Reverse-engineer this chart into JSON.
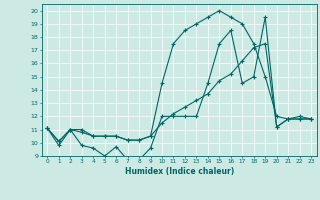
{
  "xlabel": "Humidex (Indice chaleur)",
  "xlim": [
    -0.5,
    23.5
  ],
  "ylim": [
    9,
    20.5
  ],
  "yticks": [
    9,
    10,
    11,
    12,
    13,
    14,
    15,
    16,
    17,
    18,
    19,
    20
  ],
  "xticks": [
    0,
    1,
    2,
    3,
    4,
    5,
    6,
    7,
    8,
    9,
    10,
    11,
    12,
    13,
    14,
    15,
    16,
    17,
    18,
    19,
    20,
    21,
    22,
    23
  ],
  "bg_color": "#cce9e4",
  "line_color": "#006666",
  "line1_x": [
    0,
    1,
    2,
    3,
    4,
    5,
    6,
    7,
    8,
    9,
    10,
    11,
    12,
    13,
    14,
    15,
    16,
    17,
    18,
    19,
    20,
    21,
    22,
    23
  ],
  "line1_y": [
    11.1,
    9.8,
    11.0,
    9.8,
    9.6,
    9.0,
    9.7,
    8.7,
    8.7,
    9.6,
    12.0,
    12.0,
    12.0,
    12.0,
    14.5,
    17.5,
    18.5,
    14.5,
    15.0,
    19.5,
    11.2,
    11.8,
    11.8,
    11.8
  ],
  "line2_x": [
    0,
    1,
    2,
    3,
    4,
    5,
    6,
    7,
    8,
    9,
    10,
    11,
    12,
    13,
    14,
    15,
    16,
    17,
    18,
    19,
    20,
    21,
    22,
    23
  ],
  "line2_y": [
    11.1,
    10.1,
    11.0,
    10.8,
    10.5,
    10.5,
    10.5,
    10.2,
    10.2,
    10.5,
    11.5,
    12.2,
    12.7,
    13.2,
    13.7,
    14.7,
    15.2,
    16.2,
    17.2,
    17.5,
    11.2,
    11.8,
    12.0,
    11.8
  ],
  "line3_x": [
    0,
    1,
    2,
    3,
    4,
    5,
    6,
    7,
    8,
    9,
    10,
    11,
    12,
    13,
    14,
    15,
    16,
    17,
    18,
    19,
    20,
    21,
    22,
    23
  ],
  "line3_y": [
    11.1,
    10.1,
    11.0,
    11.0,
    10.5,
    10.5,
    10.5,
    10.2,
    10.2,
    10.5,
    14.5,
    17.5,
    18.5,
    19.0,
    19.5,
    20.0,
    19.5,
    19.0,
    17.5,
    15.0,
    12.0,
    11.8,
    11.8,
    11.8
  ]
}
